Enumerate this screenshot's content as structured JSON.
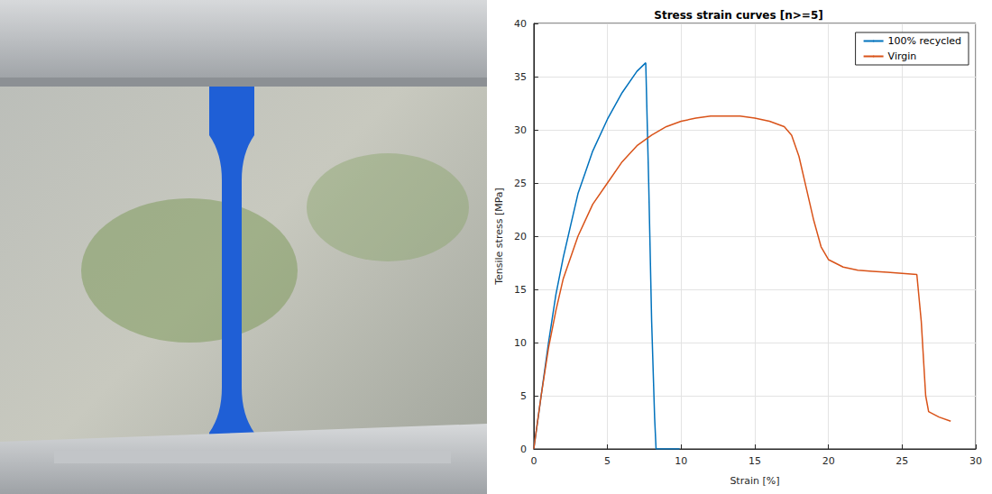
{
  "chart_data": {
    "type": "line",
    "title": "Stress strain curves [n>=5]",
    "x_label": "Strain [%]",
    "y_label": "Tensile stress [MPa]",
    "xlim": [
      0,
      30
    ],
    "xticks": [
      0,
      5,
      10,
      15,
      20,
      25,
      30
    ],
    "ylim": [
      0,
      40
    ],
    "yticks": [
      0,
      5,
      10,
      15,
      20,
      25,
      30,
      35,
      40
    ],
    "grid": true,
    "legend": "upper right",
    "series": [
      {
        "name": "100% recycled",
        "color": "#0072bd",
        "x": [
          0,
          0.5,
          1,
          1.5,
          2,
          2.5,
          3,
          3.5,
          4,
          5,
          6,
          7,
          7.6,
          7.8,
          8,
          8.2,
          8.3,
          9,
          9.9
        ],
        "values": [
          0,
          5,
          10,
          14.5,
          18,
          21,
          24,
          26,
          28,
          31,
          33.5,
          35.5,
          36.3,
          25,
          12,
          3,
          0,
          0,
          0
        ]
      },
      {
        "name": "Virgin",
        "color": "#d95319",
        "x": [
          0,
          0.5,
          1,
          1.5,
          2,
          3,
          4,
          5,
          6,
          7,
          8,
          9,
          10,
          11,
          12,
          13,
          14,
          15,
          16,
          17,
          17.5,
          18,
          18.5,
          19,
          19.5,
          20,
          21,
          22,
          23,
          24,
          25,
          26,
          26.3,
          26.6,
          26.8,
          27.5,
          28.3
        ],
        "values": [
          0,
          5,
          9.5,
          13,
          16,
          20,
          23,
          25,
          27,
          28.5,
          29.5,
          30.3,
          30.8,
          31.1,
          31.3,
          31.3,
          31.3,
          31.1,
          30.8,
          30.3,
          29.5,
          27.5,
          24.5,
          21.5,
          19,
          17.8,
          17.1,
          16.8,
          16.7,
          16.6,
          16.5,
          16.4,
          12,
          5,
          3.5,
          3,
          2.6
        ]
      }
    ]
  }
}
